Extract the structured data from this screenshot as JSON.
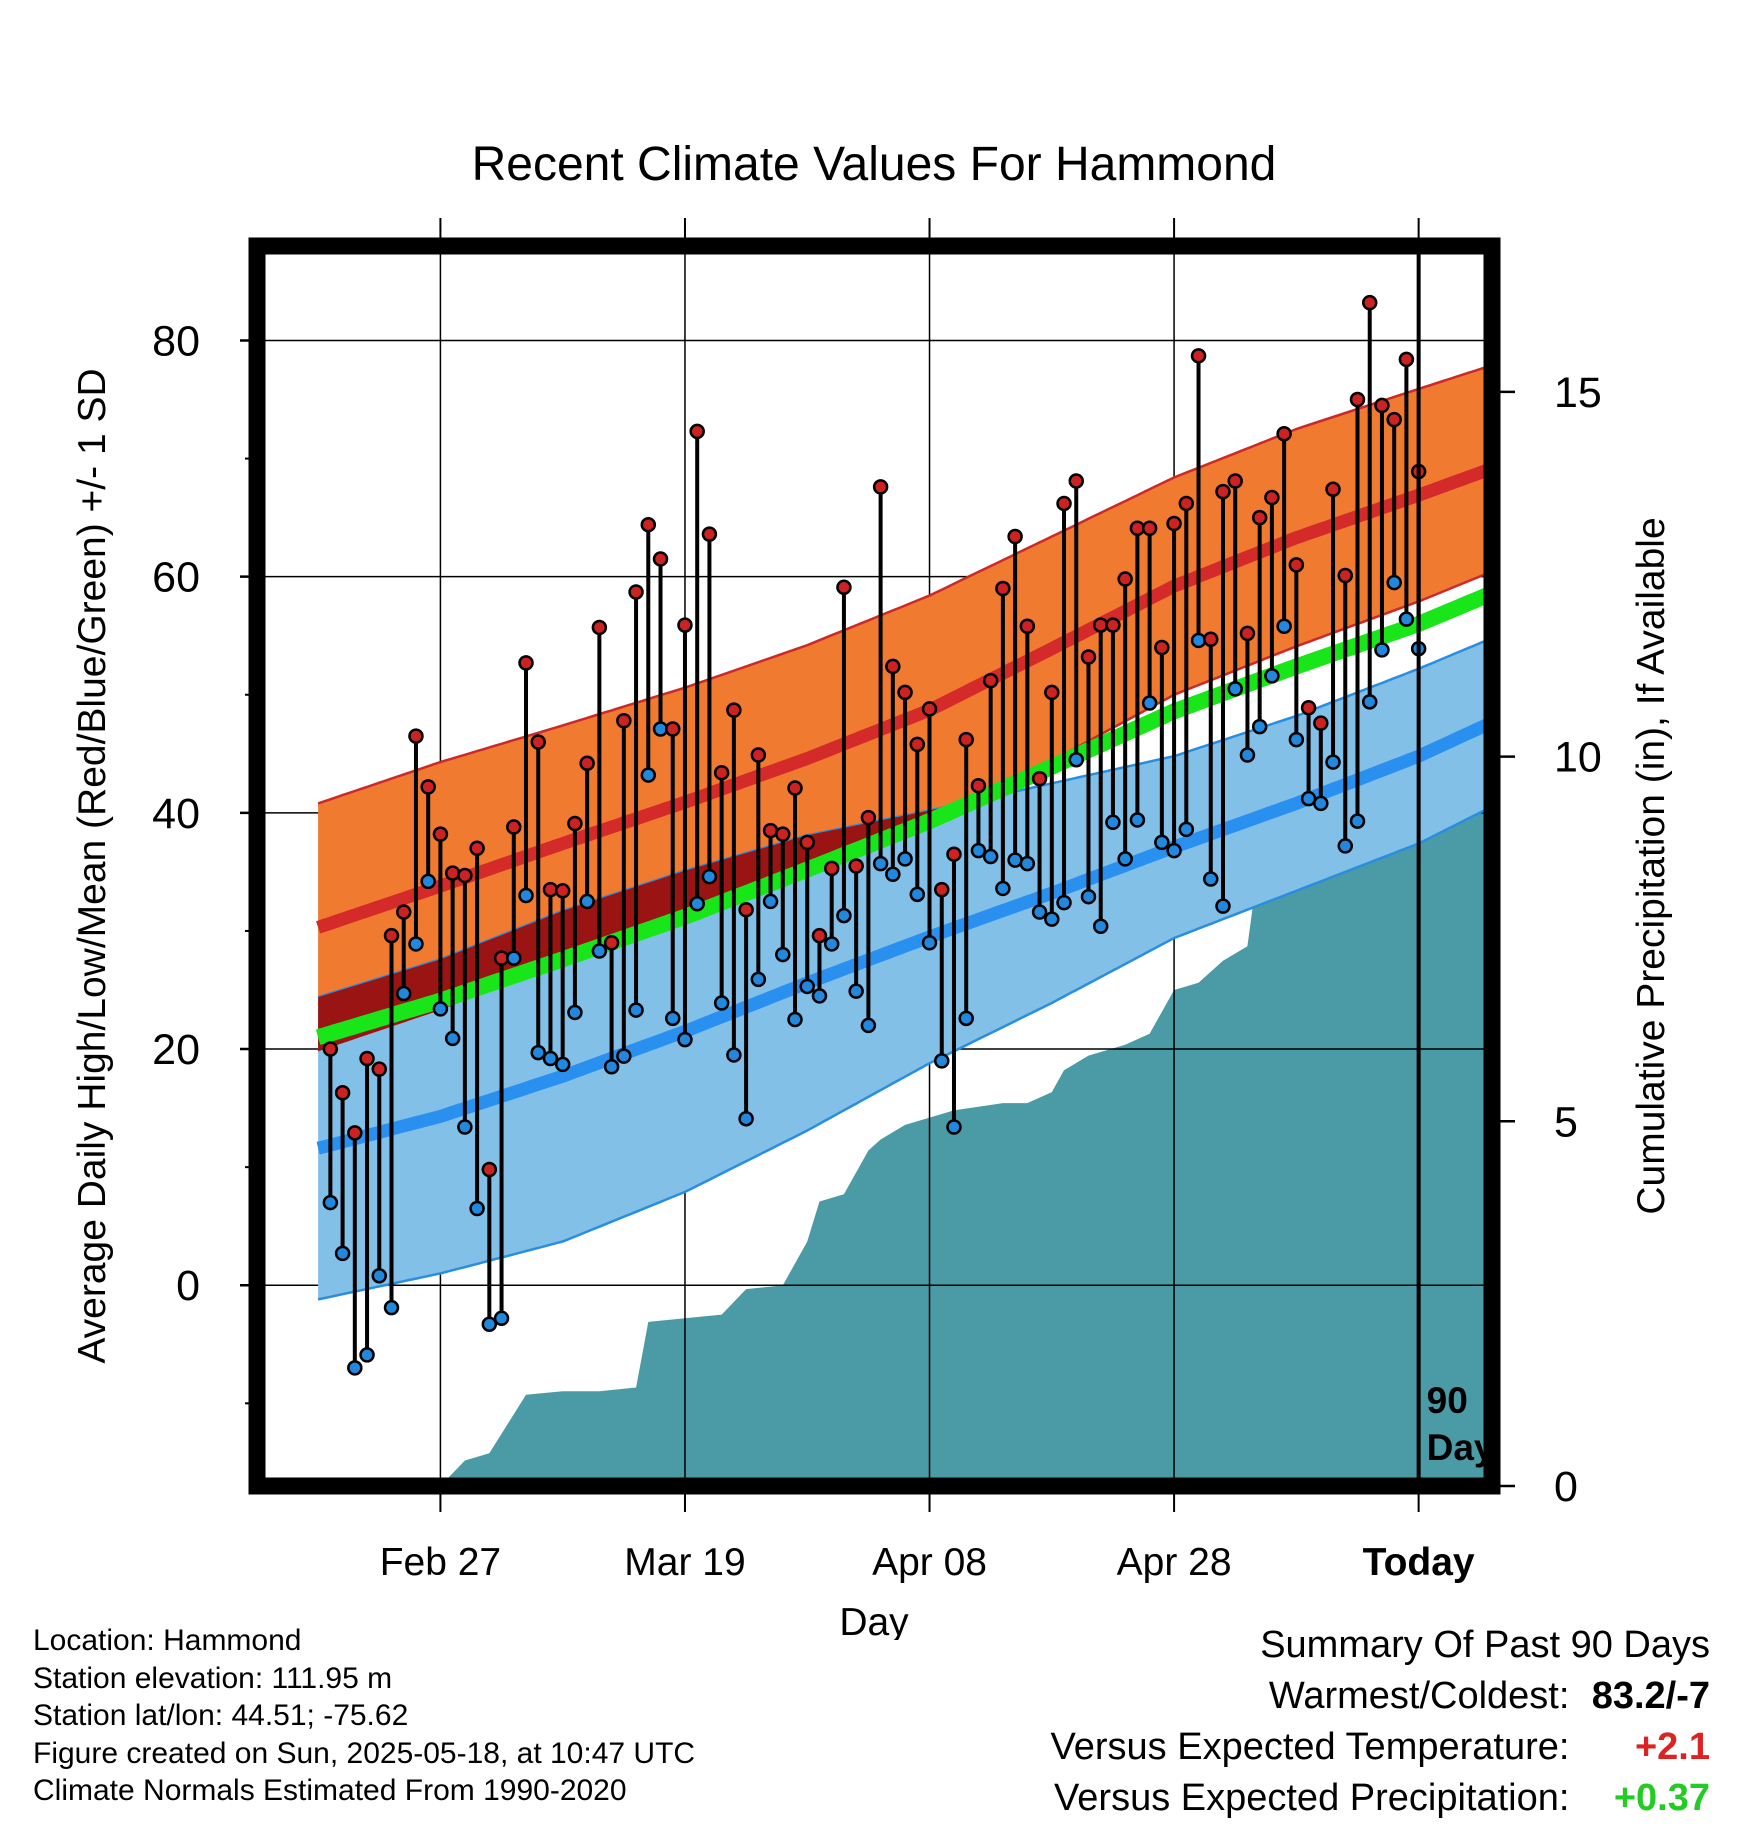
{
  "chart_data": {
    "type": "line",
    "title": "Recent Climate Values For Hammond",
    "xlabel": "Day",
    "ylabel": "Average Daily High/Low/Mean (Red/Blue/Green) +/- 1 SD",
    "y2label": "Cumulative Precipitation (in), If Available",
    "xlim_days": [
      -95,
      6
    ],
    "ylim": [
      -17,
      88
    ],
    "y2lim": [
      0,
      17
    ],
    "yticks": [
      0,
      20,
      40,
      60,
      80
    ],
    "y2ticks": [
      0,
      5,
      10,
      15
    ],
    "xticks": [
      {
        "day": -80,
        "label": "Feb 27"
      },
      {
        "day": -60,
        "label": "Mar 19"
      },
      {
        "day": -40,
        "label": "Apr 08"
      },
      {
        "day": -20,
        "label": "Apr 28"
      },
      {
        "day": 0,
        "label": "Today"
      }
    ],
    "grid": true,
    "today_marker": {
      "day": 0,
      "label_line1": "90",
      "label_line2": "Days"
    },
    "normals": {
      "days": [
        -90,
        -80,
        -70,
        -60,
        -50,
        -40,
        -30,
        -20,
        -10,
        0,
        9
      ],
      "high_mean": [
        30.3,
        33.8,
        37.4,
        40.9,
        44.6,
        48.7,
        53.9,
        59.2,
        63.3,
        66.9,
        70.3
      ],
      "high_sd": [
        10.5,
        10.5,
        10.0,
        9.7,
        9.6,
        9.7,
        9.5,
        9.2,
        9.2,
        9.0,
        8.6
      ],
      "low_mean": [
        11.6,
        14.3,
        17.7,
        21.5,
        25.6,
        29.5,
        33.2,
        37.1,
        40.8,
        44.8,
        49.1
      ],
      "low_sd": [
        12.8,
        13.3,
        14.0,
        13.6,
        12.5,
        10.7,
        9.3,
        7.7,
        7.4,
        7.4,
        7.0
      ],
      "avg_mean": [
        21.0,
        24.1,
        27.6,
        31.2,
        35.2,
        39.3,
        43.9,
        48.6,
        52.4,
        56.0,
        59.9
      ]
    },
    "series": [
      {
        "name": "Daily High",
        "color": "#cc2222",
        "values": [
          20.0,
          16.3,
          12.9,
          19.2,
          18.3,
          29.6,
          31.6,
          46.5,
          42.2,
          38.2,
          34.9,
          34.7,
          37.0,
          9.8,
          27.7,
          38.8,
          52.7,
          46.0,
          33.5,
          33.4,
          39.1,
          44.2,
          55.7,
          29.0,
          47.8,
          58.7,
          64.4,
          61.5,
          47.1,
          55.9,
          72.3,
          63.6,
          43.4,
          48.7,
          31.8,
          44.9,
          38.5,
          38.2,
          42.1,
          37.5,
          29.6,
          35.3,
          59.1,
          35.5,
          39.6,
          67.6,
          52.4,
          50.2,
          45.8,
          48.8,
          33.5,
          36.5,
          46.2,
          42.3,
          51.2,
          59.0,
          63.4,
          55.8,
          42.9,
          50.2,
          66.2,
          68.1,
          53.2,
          55.9,
          55.9,
          59.8,
          64.1,
          64.1,
          54.0,
          64.5,
          66.2,
          78.7,
          54.7,
          67.2,
          68.1,
          55.2,
          65.0,
          66.7,
          72.1,
          61.0,
          48.9,
          47.6,
          67.4,
          60.1,
          75.0,
          83.2,
          74.5,
          73.3,
          78.4,
          68.9
        ]
      },
      {
        "name": "Daily Low",
        "color": "#2288dd",
        "values": [
          7.0,
          2.7,
          -7.0,
          -5.9,
          0.8,
          -1.9,
          24.7,
          28.9,
          34.2,
          23.4,
          20.9,
          13.4,
          6.5,
          -3.3,
          -2.8,
          27.7,
          33.0,
          19.7,
          19.2,
          18.7,
          23.1,
          32.5,
          28.3,
          18.5,
          19.4,
          23.3,
          43.2,
          47.1,
          22.6,
          20.8,
          32.3,
          34.6,
          23.9,
          19.5,
          14.1,
          25.9,
          32.5,
          28.0,
          22.5,
          25.3,
          24.5,
          28.9,
          31.3,
          24.9,
          22.0,
          35.7,
          34.8,
          36.1,
          33.1,
          29.0,
          19.0,
          13.4,
          22.6,
          36.8,
          36.3,
          33.6,
          36.0,
          35.7,
          31.6,
          31.0,
          32.4,
          44.5,
          32.9,
          30.4,
          39.2,
          36.1,
          39.4,
          49.3,
          37.5,
          36.8,
          38.6,
          54.6,
          34.4,
          32.1,
          50.5,
          44.9,
          47.3,
          51.6,
          55.8,
          46.2,
          41.2,
          40.8,
          44.3,
          37.2,
          39.3,
          49.4,
          53.8,
          59.5,
          56.4,
          53.9
        ]
      }
    ],
    "precip_cumulative": {
      "days": [
        -90,
        -80,
        -78,
        -76,
        -73,
        -70,
        -67,
        -64,
        -63,
        -60,
        -57,
        -55,
        -52,
        -50,
        -49,
        -47,
        -45,
        -44,
        -42,
        -40,
        -38,
        -36,
        -34,
        -32,
        -30,
        -29,
        -27,
        -24,
        -22,
        -20,
        -18,
        -16,
        -14,
        -13,
        -12,
        -10,
        -8,
        -4,
        -2,
        0,
        9
      ],
      "values": [
        0,
        0,
        0.35,
        0.45,
        1.25,
        1.3,
        1.3,
        1.35,
        2.25,
        2.3,
        2.35,
        2.7,
        2.75,
        3.35,
        3.9,
        4.0,
        4.6,
        4.75,
        4.95,
        5.05,
        5.15,
        5.2,
        5.25,
        5.25,
        5.4,
        5.7,
        5.9,
        6.05,
        6.2,
        6.8,
        6.9,
        7.2,
        7.4,
        8.65,
        8.8,
        8.9,
        8.95,
        9.0,
        9.5,
        9.5,
        9.5
      ]
    }
  },
  "info": {
    "location": "Location: Hammond",
    "elevation": "Station elevation: 111.95 m",
    "latlon": "Station lat/lon: 44.51; -75.62",
    "created": "Figure created on Sun, 2025-05-18, at 10:47 UTC",
    "normals_period": "Climate Normals Estimated From 1990-2020"
  },
  "summary": {
    "title": "Summary Of Past 90 Days",
    "warm_cold_label": "Warmest/Coldest:",
    "warm_cold_value": "83.2/-7",
    "temp_label": "Versus Expected Temperature:",
    "temp_value": "+2.1",
    "temp_color": "#dd2222",
    "precip_label": "Versus Expected Precipitation:",
    "precip_value": "+0.37",
    "precip_color": "#22cc22"
  }
}
